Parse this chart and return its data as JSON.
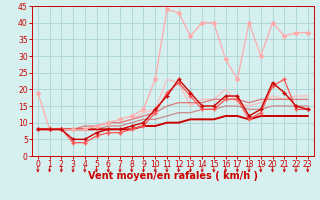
{
  "xlabel": "Vent moyen/en rafales ( km/h )",
  "background_color": "#d6f0f0",
  "grid_color": "#b0d8d8",
  "x_values": [
    0,
    1,
    2,
    3,
    4,
    5,
    6,
    7,
    8,
    9,
    10,
    11,
    12,
    13,
    14,
    15,
    16,
    17,
    18,
    19,
    20,
    21,
    22,
    23
  ],
  "ylim": [
    0,
    45
  ],
  "yticks": [
    0,
    5,
    10,
    15,
    20,
    25,
    30,
    35,
    40,
    45
  ],
  "lines": [
    {
      "y": [
        8,
        8,
        8,
        5,
        5,
        7,
        8,
        8,
        9,
        10,
        14,
        18,
        23,
        19,
        15,
        15,
        18,
        18,
        12,
        14,
        22,
        19,
        15,
        14
      ],
      "color": "#cc0000",
      "linewidth": 1.0,
      "marker": "+",
      "markersize": 3.5,
      "zorder": 5
    },
    {
      "y": [
        8,
        8,
        8,
        4,
        4,
        6,
        7,
        7,
        8,
        9,
        13,
        19,
        22,
        18,
        14,
        14,
        17,
        17,
        11,
        13,
        21,
        23,
        14,
        14
      ],
      "color": "#ff5555",
      "linewidth": 0.9,
      "marker": "+",
      "markersize": 3.5,
      "zorder": 4
    },
    {
      "y": [
        19,
        8,
        8,
        8,
        8,
        9,
        10,
        11,
        12,
        14,
        23,
        44,
        43,
        36,
        40,
        40,
        29,
        23,
        40,
        30,
        40,
        36,
        37,
        37
      ],
      "color": "#ffaaaa",
      "linewidth": 0.9,
      "marker": "D",
      "markersize": 2.0,
      "zorder": 3
    },
    {
      "y": [
        8,
        8,
        8,
        8,
        8,
        9,
        10,
        10,
        11,
        13,
        14,
        23,
        22,
        15,
        17,
        17,
        20,
        16,
        15,
        16,
        18,
        17,
        18,
        18
      ],
      "color": "#ffbbbb",
      "linewidth": 0.9,
      "marker": null,
      "markersize": 0,
      "zorder": 2
    },
    {
      "y": [
        8,
        8,
        8,
        8,
        9,
        9,
        10,
        10,
        11,
        12,
        13,
        15,
        16,
        16,
        16,
        17,
        17,
        17,
        16,
        17,
        17,
        17,
        17,
        17
      ],
      "color": "#dd7777",
      "linewidth": 0.9,
      "marker": null,
      "markersize": 0,
      "zorder": 2
    },
    {
      "y": [
        8,
        8,
        8,
        8,
        8,
        8,
        9,
        9,
        10,
        11,
        11,
        12,
        13,
        13,
        14,
        14,
        15,
        15,
        14,
        14,
        15,
        15,
        15,
        15
      ],
      "color": "#cc8888",
      "linewidth": 0.9,
      "marker": null,
      "markersize": 0,
      "zorder": 2
    },
    {
      "y": [
        8,
        8,
        8,
        8,
        8,
        8,
        8,
        8,
        8,
        9,
        9,
        10,
        10,
        11,
        11,
        11,
        12,
        12,
        11,
        12,
        12,
        12,
        12,
        12
      ],
      "color": "#cc0000",
      "linewidth": 1.4,
      "marker": null,
      "markersize": 0,
      "zorder": 2
    }
  ],
  "tick_label_fontsize": 5.5,
  "axis_label_fontsize": 7.0,
  "axis_label_color": "#cc0000",
  "tick_color": "#cc0000"
}
